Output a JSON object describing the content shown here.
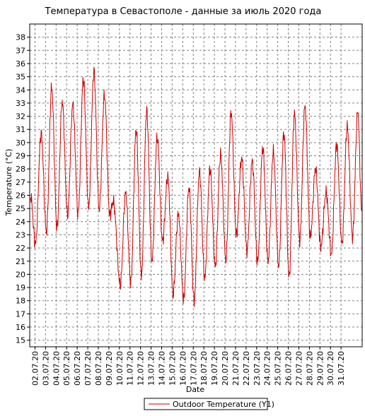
{
  "chart_data": {
    "type": "line",
    "title": "Температура в Севастополе - данные за июль 2020 года",
    "xlabel": "Date",
    "ylabel": "Temperature (°C)",
    "ylim": [
      14.5,
      39
    ],
    "grid": true,
    "legend_position": "bottom-center",
    "x_tick_labels": [
      "02.07.20",
      "03.07.20",
      "04.07.20",
      "05.07.20",
      "06.07.20",
      "07.07.20",
      "08.07.20",
      "09.07.20",
      "10.07.20",
      "11.07.20",
      "12.07.20",
      "13.07.20",
      "14.07.20",
      "15.07.20",
      "16.07.20",
      "17.07.20",
      "18.07.20",
      "19.07.20",
      "20.07.20",
      "21.07.20",
      "22.07.20",
      "23.07.20",
      "24.07.20",
      "25.07.20",
      "26.07.20",
      "27.07.20",
      "28.07.20",
      "29.07.20",
      "30.07.20",
      "31.07.20"
    ],
    "y_ticks": [
      15,
      16,
      17,
      18,
      19,
      20,
      21,
      22,
      23,
      24,
      25,
      26,
      27,
      28,
      29,
      30,
      31,
      32,
      33,
      34,
      35,
      36,
      37,
      38
    ],
    "series": [
      {
        "name": "Outdoor Temperature (Y1)",
        "color": "#cc0000",
        "points": [
          {
            "x": "01.07.20 14:00",
            "y": 26.0
          },
          {
            "x": "02.07.20 01:00",
            "y": 22.3
          },
          {
            "x": "02.07.20 14:00",
            "y": 30.7
          },
          {
            "x": "03.07.20 02:00",
            "y": 23.2
          },
          {
            "x": "03.07.20 14:00",
            "y": 34.2
          },
          {
            "x": "04.07.20 02:00",
            "y": 23.5
          },
          {
            "x": "04.07.20 14:00",
            "y": 33.1
          },
          {
            "x": "05.07.20 02:00",
            "y": 24.5
          },
          {
            "x": "05.07.20 14:00",
            "y": 32.9
          },
          {
            "x": "06.07.20 02:00",
            "y": 24.6
          },
          {
            "x": "06.07.20 14:00",
            "y": 34.8
          },
          {
            "x": "07.07.20 02:00",
            "y": 25.1
          },
          {
            "x": "07.07.20 14:00",
            "y": 35.4
          },
          {
            "x": "08.07.20 02:00",
            "y": 24.9
          },
          {
            "x": "08.07.20 14:00",
            "y": 33.6
          },
          {
            "x": "09.07.20 02:00",
            "y": 24.5
          },
          {
            "x": "09.07.20 10:00",
            "y": 25.5
          },
          {
            "x": "10.07.20 02:00",
            "y": 19.2
          },
          {
            "x": "10.07.20 14:00",
            "y": 26.2
          },
          {
            "x": "11.07.20 02:00",
            "y": 19.4
          },
          {
            "x": "11.07.20 14:00",
            "y": 31.0
          },
          {
            "x": "12.07.20 02:00",
            "y": 19.9
          },
          {
            "x": "12.07.20 14:00",
            "y": 32.4
          },
          {
            "x": "13.07.20 02:00",
            "y": 21.0
          },
          {
            "x": "13.07.20 14:00",
            "y": 30.4
          },
          {
            "x": "14.07.20 02:00",
            "y": 22.5
          },
          {
            "x": "14.07.20 14:00",
            "y": 27.4
          },
          {
            "x": "15.07.20 02:00",
            "y": 18.5
          },
          {
            "x": "15.07.20 14:00",
            "y": 24.6
          },
          {
            "x": "16.07.20 02:00",
            "y": 18.1
          },
          {
            "x": "16.07.20 14:00",
            "y": 26.6
          },
          {
            "x": "17.07.20 02:00",
            "y": 18.0
          },
          {
            "x": "17.07.20 14:00",
            "y": 27.8
          },
          {
            "x": "18.07.20 02:00",
            "y": 19.7
          },
          {
            "x": "18.07.20 14:00",
            "y": 28.0
          },
          {
            "x": "19.07.20 02:00",
            "y": 20.6
          },
          {
            "x": "19.07.20 14:00",
            "y": 29.1
          },
          {
            "x": "20.07.20 02:00",
            "y": 21.1
          },
          {
            "x": "20.07.20 14:00",
            "y": 32.3
          },
          {
            "x": "21.07.20 02:00",
            "y": 23.0
          },
          {
            "x": "21.07.20 14:00",
            "y": 28.8
          },
          {
            "x": "22.07.20 02:00",
            "y": 21.8
          },
          {
            "x": "22.07.20 14:00",
            "y": 28.6
          },
          {
            "x": "23.07.20 02:00",
            "y": 20.9
          },
          {
            "x": "23.07.20 14:00",
            "y": 29.6
          },
          {
            "x": "24.07.20 02:00",
            "y": 21.0
          },
          {
            "x": "24.07.20 14:00",
            "y": 29.3
          },
          {
            "x": "25.07.20 02:00",
            "y": 20.6
          },
          {
            "x": "25.07.20 14:00",
            "y": 30.7
          },
          {
            "x": "26.07.20 02:00",
            "y": 19.8
          },
          {
            "x": "26.07.20 14:00",
            "y": 32.2
          },
          {
            "x": "27.07.20 02:00",
            "y": 22.6
          },
          {
            "x": "27.07.20 14:00",
            "y": 32.8
          },
          {
            "x": "28.07.20 02:00",
            "y": 22.8
          },
          {
            "x": "28.07.20 14:00",
            "y": 28.0
          },
          {
            "x": "29.07.20 02:00",
            "y": 22.1
          },
          {
            "x": "29.07.20 14:00",
            "y": 26.2
          },
          {
            "x": "30.07.20 02:00",
            "y": 21.5
          },
          {
            "x": "30.07.20 14:00",
            "y": 29.9
          },
          {
            "x": "31.07.20 02:00",
            "y": 22.3
          },
          {
            "x": "31.07.20 14:00",
            "y": 31.2
          },
          {
            "x": "01.08.20 02:00",
            "y": 22.8
          },
          {
            "x": "01.08.20 14:00",
            "y": 32.4
          },
          {
            "x": "01.08.20 23:00",
            "y": 24.8
          }
        ]
      }
    ]
  }
}
